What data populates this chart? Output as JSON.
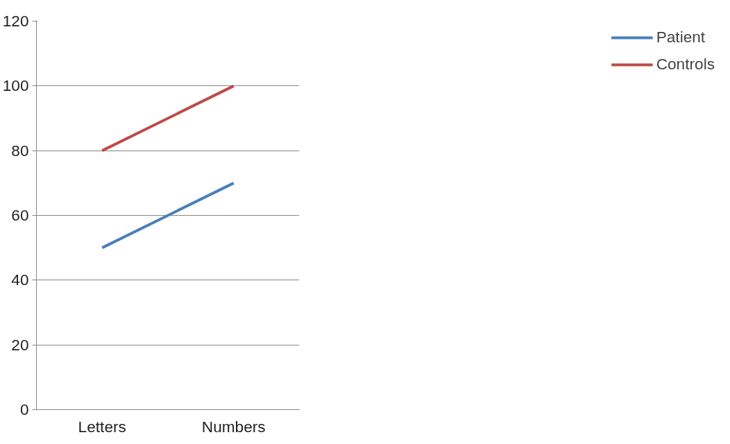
{
  "chart_data": {
    "type": "line",
    "categories": [
      "Letters",
      "Numbers"
    ],
    "series": [
      {
        "name": "Patient",
        "color": "#4a7ebb",
        "values": [
          50,
          70
        ]
      },
      {
        "name": "Controls",
        "color": "#be4b48",
        "values": [
          80,
          100
        ]
      }
    ],
    "ylim": [
      0,
      120
    ],
    "yticks": [
      0,
      20,
      40,
      60,
      80,
      100,
      120
    ],
    "grid": "y",
    "legend": "right",
    "marker": "none",
    "line_style": "solid"
  }
}
